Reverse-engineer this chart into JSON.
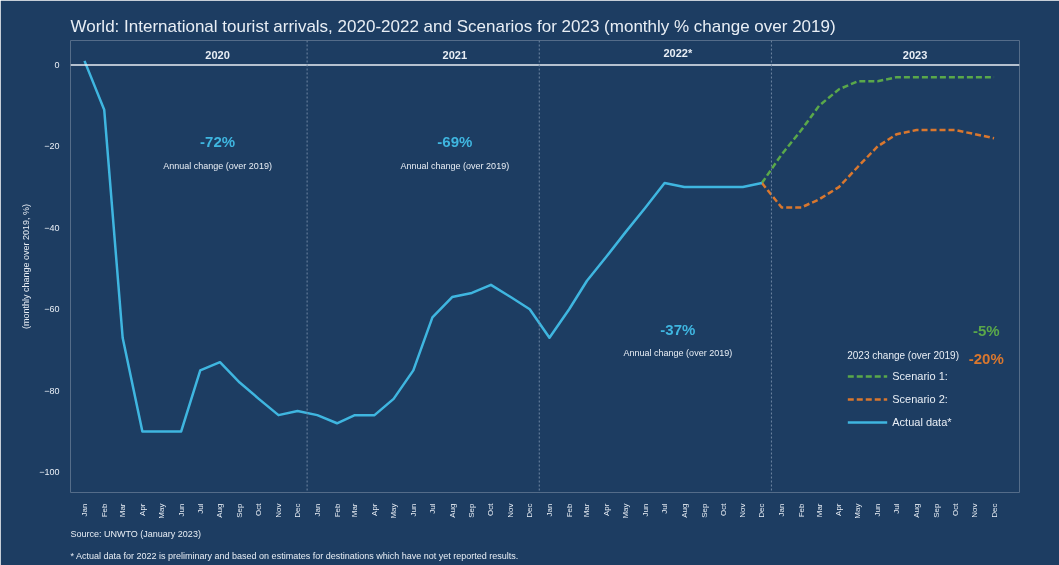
{
  "chart_data": {
    "type": "line",
    "title": "World: International tourist arrivals, 2020-2022 and Scenarios for 2023",
    "subtitle": "(monthly % change over 2019)",
    "ylabel": "(monthly change over 2019, %)",
    "legend_title": "2023 change (over 2019)",
    "x": [
      "2020-01",
      "2020-02",
      "2020-03",
      "2020-04",
      "2020-05",
      "2020-06",
      "2020-07",
      "2020-08",
      "2020-09",
      "2020-10",
      "2020-11",
      "2020-12",
      "2021-01",
      "2021-02",
      "2021-03",
      "2021-04",
      "2021-05",
      "2021-06",
      "2021-07",
      "2021-08",
      "2021-09",
      "2021-10",
      "2021-11",
      "2021-12",
      "2022-01",
      "2022-02",
      "2022-03",
      "2022-04",
      "2022-05",
      "2022-06",
      "2022-07",
      "2022-08",
      "2022-09",
      "2022-10",
      "2022-11",
      "2022-12",
      "2023-01",
      "2023-02",
      "2023-03",
      "2023-04",
      "2023-05",
      "2023-06",
      "2023-07",
      "2023-08",
      "2023-09",
      "2023-10",
      "2023-11",
      "2023-12"
    ],
    "series": [
      {
        "name": "Scenario 1:",
        "color": "#5aa84a",
        "line_style": "dashed",
        "values": [
          null,
          null,
          null,
          null,
          null,
          null,
          null,
          null,
          null,
          null,
          null,
          null,
          null,
          null,
          null,
          null,
          null,
          null,
          null,
          null,
          null,
          null,
          null,
          null,
          null,
          null,
          null,
          null,
          null,
          null,
          null,
          null,
          null,
          null,
          null,
          -29,
          -22,
          -16,
          -10,
          -6,
          -4,
          -4,
          -3,
          -3,
          -3,
          -3,
          -3,
          -3
        ]
      },
      {
        "name": "Scenario 2:",
        "color": "#d9772e",
        "line_style": "dashed",
        "values": [
          null,
          null,
          null,
          null,
          null,
          null,
          null,
          null,
          null,
          null,
          null,
          null,
          null,
          null,
          null,
          null,
          null,
          null,
          null,
          null,
          null,
          null,
          null,
          null,
          null,
          null,
          null,
          null,
          null,
          null,
          null,
          null,
          null,
          null,
          null,
          -29,
          -35,
          -35,
          -33,
          -30,
          -25,
          -20,
          -17,
          -16,
          -16,
          -16,
          -17,
          -18
        ]
      },
      {
        "name": "Actual data*",
        "color": "#3fb6e0",
        "line_style": "solid",
        "values": [
          1,
          -11,
          -67,
          -90,
          -90,
          -90,
          -75,
          -73,
          -78,
          -82,
          -86,
          -85,
          -86,
          -88,
          -86,
          -86,
          -82,
          -75,
          -62,
          -57,
          -56,
          -54,
          -57,
          -60,
          -67,
          -60,
          -53,
          -47,
          -41,
          -35,
          -29,
          -30,
          -30,
          -30,
          -30,
          -29,
          null,
          null,
          null,
          null,
          null,
          null,
          null,
          null,
          null,
          null,
          null,
          null
        ]
      }
    ],
    "xlim": [
      "2019-12-10",
      "2024-01-10"
    ],
    "xticks": [
      {
        "value": "2020-01",
        "label": "Jan"
      },
      {
        "value": "2020-02",
        "label": "Feb"
      },
      {
        "value": "2020-03",
        "label": "Mar"
      },
      {
        "value": "2020-04",
        "label": "Apr"
      },
      {
        "value": "2020-05",
        "label": "May"
      },
      {
        "value": "2020-06",
        "label": "Jun"
      },
      {
        "value": "2020-07",
        "label": "Jul"
      },
      {
        "value": "2020-08",
        "label": "Aug"
      },
      {
        "value": "2020-09",
        "label": "Sep"
      },
      {
        "value": "2020-10",
        "label": "Oct"
      },
      {
        "value": "2020-11",
        "label": "Nov"
      },
      {
        "value": "2020-12",
        "label": "Dec"
      },
      {
        "value": "2021-01",
        "label": "Jan"
      },
      {
        "value": "2021-02",
        "label": "Feb"
      },
      {
        "value": "2021-03",
        "label": "Mar"
      },
      {
        "value": "2021-04",
        "label": "Apr"
      },
      {
        "value": "2021-05",
        "label": "May"
      },
      {
        "value": "2021-06",
        "label": "Jun"
      },
      {
        "value": "2021-07",
        "label": "Jul"
      },
      {
        "value": "2021-08",
        "label": "Aug"
      },
      {
        "value": "2021-09",
        "label": "Sep"
      },
      {
        "value": "2021-10",
        "label": "Oct"
      },
      {
        "value": "2021-11",
        "label": "Nov"
      },
      {
        "value": "2021-12",
        "label": "Dec"
      },
      {
        "value": "2022-01",
        "label": "Jan"
      },
      {
        "value": "2022-02",
        "label": "Feb"
      },
      {
        "value": "2022-03",
        "label": "Mar"
      },
      {
        "value": "2022-04",
        "label": "Apr"
      },
      {
        "value": "2022-05",
        "label": "May"
      },
      {
        "value": "2022-06",
        "label": "Jun"
      },
      {
        "value": "2022-07",
        "label": "Jul"
      },
      {
        "value": "2022-08",
        "label": "Aug"
      },
      {
        "value": "2022-09",
        "label": "Sep"
      },
      {
        "value": "2022-10",
        "label": "Oct"
      },
      {
        "value": "2022-11",
        "label": "Nov"
      },
      {
        "value": "2022-12",
        "label": "Dec"
      },
      {
        "value": "2023-01",
        "label": "Jan"
      },
      {
        "value": "2023-02",
        "label": "Feb"
      },
      {
        "value": "2023-03",
        "label": "Mar"
      },
      {
        "value": "2023-04",
        "label": "Apr"
      },
      {
        "value": "2023-05",
        "label": "May"
      },
      {
        "value": "2023-06",
        "label": "Jun"
      },
      {
        "value": "2023-07",
        "label": "Jul"
      },
      {
        "value": "2023-08",
        "label": "Aug"
      },
      {
        "value": "2023-09",
        "label": "Sep"
      },
      {
        "value": "2023-10",
        "label": "Oct"
      },
      {
        "value": "2023-11",
        "label": "Nov"
      },
      {
        "value": "2023-12",
        "label": "Dec"
      }
    ],
    "ylim": [
      -105,
      6
    ],
    "yticks": [
      0,
      -20,
      -40,
      -60,
      -80,
      -100
    ],
    "ref_lines": [
      {
        "axis": "y",
        "value": 0,
        "color": "#e8eef5",
        "line_style": "solid"
      },
      {
        "axis": "x",
        "value": "2020-12-16",
        "color": "#6f87a3",
        "line_style": "dotted"
      },
      {
        "axis": "x",
        "value": "2021-12-16",
        "color": "#6f87a3",
        "line_style": "dotted"
      },
      {
        "axis": "x",
        "value": "2022-12-16",
        "color": "#6f87a3",
        "line_style": "dotted"
      }
    ],
    "annotations": [
      "2020",
      "2021",
      "2022*",
      "2023",
      "-72%",
      "Annual change (over 2019)",
      "-69%",
      "Annual change (over 2019)",
      "-37%",
      "Annual change (over 2019)",
      "-5%",
      "-20%",
      "Source: UNWTO (January 2023)",
      "* Actual data for 2022 is preliminary and based on estimates for destinations which have not yet reported results."
    ],
    "grid": false,
    "legend": "bottom right",
    "marker": "none"
  }
}
